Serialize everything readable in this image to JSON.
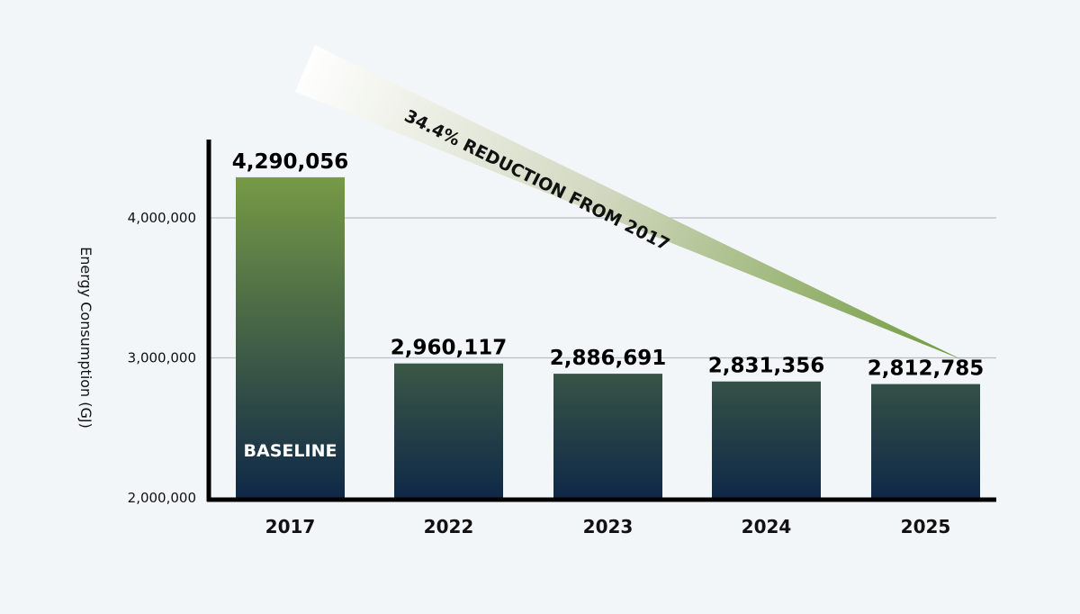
{
  "chart_data": {
    "type": "bar",
    "ylabel": "Energy Consumption (GJ)",
    "categories": [
      "2017",
      "2022",
      "2023",
      "2024",
      "2025"
    ],
    "values": [
      4290056,
      2960117,
      2886691,
      2831356,
      2812785
    ],
    "value_labels": [
      "4,290,056",
      "2,960,117",
      "2,886,691",
      "2,831,356",
      "2,812,785"
    ],
    "ylim": [
      2000000,
      4500000
    ],
    "yticks": [
      {
        "value": 2000000,
        "label": "2,000,000"
      },
      {
        "value": 3000000,
        "label": "3,000,000"
      },
      {
        "value": 4000000,
        "label": "4,000,000"
      }
    ],
    "grid": true,
    "bar_annotation": {
      "category": "2017",
      "text": "BASELINE"
    },
    "annotation": {
      "text": "34.4% REDUCTION FROM 2017",
      "from_category": "2017",
      "to_category": "2025"
    },
    "colors": {
      "bar_top": "#7a9e45",
      "bar_bottom": "#0f2847",
      "arrow_end": "#6f9a3c",
      "grid": "#b8bec6",
      "axis": "#000000"
    }
  }
}
